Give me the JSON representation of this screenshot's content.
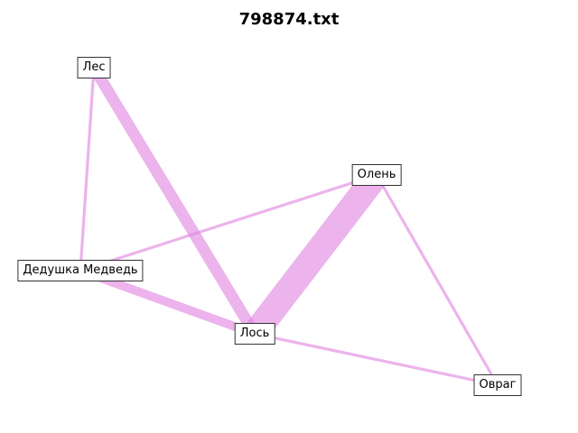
{
  "title": "798874.txt",
  "edge_color": "#e28ae2",
  "nodes": [
    {
      "id": "les",
      "label": "Лес"
    },
    {
      "id": "olen",
      "label": "Олень"
    },
    {
      "id": "dedushka",
      "label": "Дедушка Медведь"
    },
    {
      "id": "los",
      "label": "Лось"
    },
    {
      "id": "ovrag",
      "label": "Овраг"
    }
  ],
  "edges": [
    {
      "source": "les",
      "target": "dedushka",
      "weight": 1
    },
    {
      "source": "les",
      "target": "los",
      "weight": 4
    },
    {
      "source": "olen",
      "target": "dedushka",
      "weight": 1
    },
    {
      "source": "olen",
      "target": "los",
      "weight": 9
    },
    {
      "source": "olen",
      "target": "ovrag",
      "weight": 1
    },
    {
      "source": "dedushka",
      "target": "los",
      "weight": 3
    },
    {
      "source": "los",
      "target": "ovrag",
      "weight": 1
    }
  ]
}
